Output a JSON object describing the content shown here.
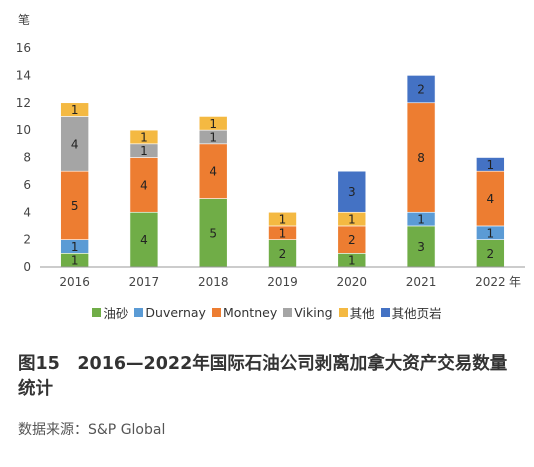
{
  "chart_data": {
    "type": "bar",
    "stacked": true,
    "y_unit_label": "笔",
    "x_unit_label": "年",
    "categories": [
      "2016",
      "2017",
      "2018",
      "2019",
      "2020",
      "2021",
      "2022"
    ],
    "ylim": [
      0,
      16
    ],
    "yticks": [
      0,
      2,
      4,
      6,
      8,
      10,
      12,
      14,
      16
    ],
    "grid": false,
    "legend_position": "bottom",
    "series": [
      {
        "name": "油砂",
        "color": "#70AD47",
        "values": [
          1,
          4,
          5,
          2,
          1,
          3,
          2
        ]
      },
      {
        "name": "Duvernay",
        "color": "#5B9BD5",
        "values": [
          1,
          0,
          0,
          0,
          0,
          1,
          1
        ]
      },
      {
        "name": "Montney",
        "color": "#ED7D31",
        "values": [
          5,
          4,
          4,
          1,
          2,
          8,
          4
        ]
      },
      {
        "name": "Viking",
        "color": "#A5A5A5",
        "values": [
          4,
          1,
          1,
          0,
          0,
          0,
          0
        ]
      },
      {
        "name": "其他",
        "color": "#F4B942",
        "values": [
          1,
          1,
          1,
          1,
          1,
          0,
          0
        ]
      },
      {
        "name": "其他页岩",
        "color": "#4472C4",
        "values": [
          0,
          0,
          0,
          0,
          3,
          2,
          1
        ]
      }
    ]
  },
  "caption": "图15　2016—2022年国际石油公司剥离加拿大资产交易数量统计",
  "source": "数据来源：S&P Global"
}
